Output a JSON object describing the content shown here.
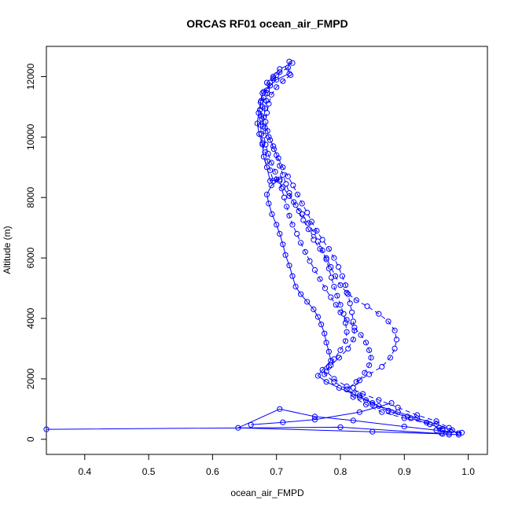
{
  "chart_data": {
    "type": "line",
    "title": "ORCAS RF01 ocean_air_FMPD",
    "xlabel": "ocean_air_FMPD",
    "ylabel": "Altitude (m)",
    "xlim": [
      0.34,
      1.03
    ],
    "ylim": [
      -500,
      13000
    ],
    "xticks": [
      "0.4",
      "0.5",
      "0.6",
      "0.7",
      "0.8",
      "0.9",
      "1.0"
    ],
    "yticks": [
      "0",
      "2000",
      "4000",
      "6000",
      "8000",
      "10000",
      "12000"
    ],
    "color": "#0000ff",
    "markers": "open-circle",
    "grid": false,
    "series": [
      {
        "style": "solid",
        "points": [
          [
            0.72,
            12500
          ],
          [
            0.718,
            12300
          ],
          [
            0.72,
            12100
          ],
          [
            0.7,
            11900
          ],
          [
            0.69,
            11700
          ],
          [
            0.678,
            11450
          ],
          [
            0.675,
            11150
          ],
          [
            0.672,
            10800
          ],
          [
            0.67,
            10450
          ],
          [
            0.673,
            10100
          ],
          [
            0.678,
            9750
          ],
          [
            0.68,
            9350
          ],
          [
            0.685,
            9000
          ],
          [
            0.69,
            8550
          ],
          [
            0.705,
            8600
          ],
          [
            0.692,
            8400
          ],
          [
            0.685,
            8100
          ],
          [
            0.688,
            7800
          ],
          [
            0.693,
            7450
          ],
          [
            0.7,
            7100
          ],
          [
            0.705,
            6800
          ],
          [
            0.71,
            6450
          ],
          [
            0.714,
            6100
          ],
          [
            0.72,
            5750
          ],
          [
            0.725,
            5400
          ],
          [
            0.73,
            5050
          ],
          [
            0.738,
            4800
          ],
          [
            0.748,
            4550
          ],
          [
            0.758,
            4300
          ],
          [
            0.765,
            4050
          ],
          [
            0.77,
            3800
          ],
          [
            0.775,
            3500
          ],
          [
            0.778,
            3200
          ],
          [
            0.782,
            2900
          ],
          [
            0.785,
            2600
          ],
          [
            0.772,
            2300
          ],
          [
            0.765,
            2100
          ],
          [
            0.778,
            1900
          ],
          [
            0.798,
            1700
          ],
          [
            0.82,
            1500
          ],
          [
            0.84,
            1300
          ],
          [
            0.86,
            1100
          ],
          [
            0.89,
            900
          ],
          [
            0.92,
            700
          ],
          [
            0.95,
            500
          ],
          [
            0.975,
            300
          ],
          [
            0.985,
            150
          ],
          [
            0.8,
            400
          ],
          [
            0.34,
            330
          ]
        ]
      },
      {
        "style": "solid",
        "points": [
          [
            0.99,
            220
          ],
          [
            0.95,
            300
          ],
          [
            0.9,
            420
          ],
          [
            0.82,
            620
          ],
          [
            0.76,
            750
          ],
          [
            0.705,
            1000
          ],
          [
            0.64,
            380
          ],
          [
            0.85,
            250
          ],
          [
            0.96,
            180
          ]
        ]
      },
      {
        "style": "solid",
        "points": [
          [
            0.66,
            480
          ],
          [
            0.71,
            560
          ],
          [
            0.76,
            650
          ],
          [
            0.83,
            900
          ],
          [
            0.88,
            1200
          ]
        ]
      },
      {
        "style": "dashed",
        "points": [
          [
            0.725,
            12450
          ],
          [
            0.705,
            12250
          ],
          [
            0.695,
            12000
          ],
          [
            0.685,
            11800
          ],
          [
            0.68,
            11500
          ],
          [
            0.676,
            11200
          ],
          [
            0.674,
            10900
          ],
          [
            0.677,
            10600
          ],
          [
            0.682,
            10300
          ],
          [
            0.688,
            10000
          ],
          [
            0.695,
            9700
          ],
          [
            0.7,
            9400
          ],
          [
            0.705,
            9050
          ],
          [
            0.71,
            8750
          ],
          [
            0.715,
            8450
          ],
          [
            0.72,
            8150
          ],
          [
            0.727,
            7850
          ],
          [
            0.735,
            7550
          ],
          [
            0.742,
            7250
          ],
          [
            0.75,
            6950
          ],
          [
            0.758,
            6600
          ],
          [
            0.768,
            6300
          ],
          [
            0.778,
            6000
          ],
          [
            0.785,
            5700
          ],
          [
            0.792,
            5400
          ],
          [
            0.8,
            5100
          ],
          [
            0.81,
            4850
          ],
          [
            0.825,
            4600
          ],
          [
            0.842,
            4400
          ],
          [
            0.86,
            4150
          ],
          [
            0.875,
            3900
          ],
          [
            0.885,
            3600
          ],
          [
            0.888,
            3300
          ],
          [
            0.885,
            3000
          ],
          [
            0.878,
            2700
          ],
          [
            0.865,
            2400
          ],
          [
            0.845,
            2150
          ],
          [
            0.825,
            1900
          ],
          [
            0.81,
            1650
          ],
          [
            0.82,
            1400
          ],
          [
            0.84,
            1150
          ],
          [
            0.865,
            900
          ],
          [
            0.9,
            700
          ],
          [
            0.94,
            500
          ],
          [
            0.96,
            350
          ],
          [
            0.97,
            200
          ]
        ]
      },
      {
        "style": "dashed",
        "points": [
          [
            0.722,
            12050
          ],
          [
            0.71,
            11850
          ],
          [
            0.7,
            11650
          ],
          [
            0.692,
            11400
          ],
          [
            0.688,
            11100
          ],
          [
            0.685,
            10800
          ],
          [
            0.683,
            10500
          ],
          [
            0.686,
            10200
          ],
          [
            0.69,
            9900
          ],
          [
            0.696,
            9600
          ],
          [
            0.703,
            9300
          ],
          [
            0.71,
            9000
          ],
          [
            0.718,
            8700
          ],
          [
            0.726,
            8400
          ],
          [
            0.733,
            8100
          ],
          [
            0.74,
            7800
          ],
          [
            0.748,
            7500
          ],
          [
            0.755,
            7200
          ],
          [
            0.763,
            6900
          ],
          [
            0.772,
            6600
          ],
          [
            0.782,
            6300
          ],
          [
            0.79,
            6000
          ],
          [
            0.797,
            5700
          ],
          [
            0.803,
            5400
          ],
          [
            0.808,
            5100
          ],
          [
            0.812,
            4800
          ],
          [
            0.815,
            4500
          ],
          [
            0.818,
            4200
          ],
          [
            0.82,
            3900
          ],
          [
            0.822,
            3600
          ],
          [
            0.82,
            3300
          ],
          [
            0.812,
            3000
          ],
          [
            0.798,
            2700
          ],
          [
            0.785,
            2450
          ],
          [
            0.778,
            2250
          ],
          [
            0.79,
            2000
          ],
          [
            0.81,
            1750
          ],
          [
            0.835,
            1500
          ],
          [
            0.86,
            1300
          ],
          [
            0.89,
            1050
          ],
          [
            0.92,
            800
          ],
          [
            0.95,
            600
          ],
          [
            0.97,
            380
          ],
          [
            0.985,
            200
          ]
        ]
      },
      {
        "style": "dashed",
        "points": [
          [
            0.718,
            12300
          ],
          [
            0.7,
            12050
          ],
          [
            0.69,
            11800
          ],
          [
            0.685,
            11550
          ],
          [
            0.68,
            11300
          ],
          [
            0.678,
            11000
          ],
          [
            0.676,
            10700
          ],
          [
            0.675,
            10400
          ],
          [
            0.676,
            10100
          ],
          [
            0.678,
            9800
          ],
          [
            0.682,
            9500
          ],
          [
            0.686,
            9200
          ],
          [
            0.69,
            8900
          ],
          [
            0.695,
            8550
          ],
          [
            0.705,
            8550
          ],
          [
            0.708,
            8300
          ],
          [
            0.712,
            8000
          ],
          [
            0.716,
            7700
          ],
          [
            0.72,
            7400
          ],
          [
            0.725,
            7100
          ],
          [
            0.732,
            6800
          ],
          [
            0.738,
            6500
          ],
          [
            0.745,
            6200
          ],
          [
            0.752,
            5900
          ],
          [
            0.76,
            5600
          ],
          [
            0.768,
            5300
          ],
          [
            0.776,
            5000
          ],
          [
            0.785,
            4700
          ],
          [
            0.793,
            4450
          ],
          [
            0.8,
            4200
          ],
          [
            0.81,
            3950
          ],
          [
            0.822,
            3700
          ],
          [
            0.832,
            3450
          ],
          [
            0.84,
            3200
          ],
          [
            0.845,
            2950
          ],
          [
            0.848,
            2700
          ],
          [
            0.845,
            2450
          ],
          [
            0.838,
            2200
          ],
          [
            0.83,
            1950
          ],
          [
            0.82,
            1700
          ],
          [
            0.83,
            1450
          ],
          [
            0.85,
            1200
          ],
          [
            0.875,
            950
          ],
          [
            0.905,
            750
          ],
          [
            0.935,
            550
          ],
          [
            0.955,
            380
          ],
          [
            0.958,
            200
          ]
        ]
      },
      {
        "style": "dashed",
        "points": [
          [
            0.705,
            12150
          ],
          [
            0.695,
            11950
          ],
          [
            0.69,
            11700
          ],
          [
            0.686,
            11450
          ],
          [
            0.684,
            11200
          ],
          [
            0.682,
            10950
          ],
          [
            0.68,
            10650
          ],
          [
            0.679,
            10350
          ],
          [
            0.68,
            10050
          ],
          [
            0.683,
            9750
          ],
          [
            0.687,
            9450
          ],
          [
            0.692,
            9150
          ],
          [
            0.698,
            8850
          ],
          [
            0.7,
            8600
          ],
          [
            0.71,
            8350
          ],
          [
            0.72,
            8050
          ],
          [
            0.73,
            7750
          ],
          [
            0.74,
            7450
          ],
          [
            0.75,
            7150
          ],
          [
            0.758,
            6850
          ],
          [
            0.765,
            6550
          ],
          [
            0.772,
            6250
          ],
          [
            0.778,
            5950
          ],
          [
            0.782,
            5650
          ],
          [
            0.786,
            5350
          ],
          [
            0.79,
            5050
          ],
          [
            0.795,
            4750
          ],
          [
            0.8,
            4450
          ],
          [
            0.805,
            4150
          ],
          [
            0.808,
            3850
          ],
          [
            0.81,
            3550
          ],
          [
            0.808,
            3250
          ],
          [
            0.8,
            2950
          ],
          [
            0.79,
            2650
          ],
          [
            0.782,
            2400
          ],
          [
            0.775,
            2150
          ],
          [
            0.79,
            1900
          ],
          [
            0.81,
            1650
          ],
          [
            0.83,
            1400
          ],
          [
            0.85,
            1150
          ],
          [
            0.88,
            900
          ],
          [
            0.91,
            700
          ],
          [
            0.94,
            500
          ],
          [
            0.96,
            300
          ],
          [
            0.97,
            150
          ]
        ]
      }
    ]
  }
}
